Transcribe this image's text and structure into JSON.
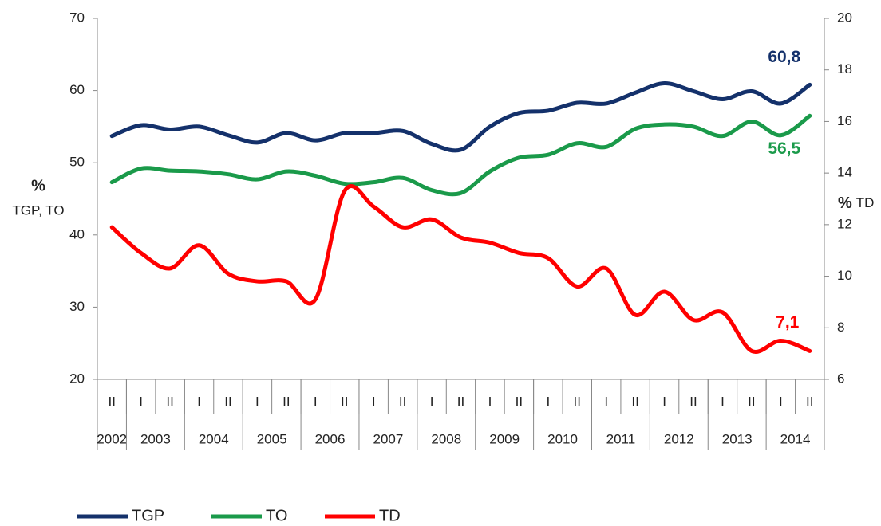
{
  "chart_data": {
    "type": "line",
    "categories": [
      "II",
      "I",
      "II",
      "I",
      "II",
      "I",
      "II",
      "I",
      "II",
      "I",
      "II",
      "I",
      "II",
      "I",
      "II",
      "I",
      "II",
      "I",
      "II",
      "I",
      "II",
      "I",
      "II",
      "I",
      "II"
    ],
    "groups": [
      {
        "label": "2002",
        "size": 1
      },
      {
        "label": "2003",
        "size": 2
      },
      {
        "label": "2004",
        "size": 2
      },
      {
        "label": "2005",
        "size": 2
      },
      {
        "label": "2006",
        "size": 2
      },
      {
        "label": "2007",
        "size": 2
      },
      {
        "label": "2008",
        "size": 2
      },
      {
        "label": "2009",
        "size": 2
      },
      {
        "label": "2010",
        "size": 2
      },
      {
        "label": "2011",
        "size": 2
      },
      {
        "label": "2012",
        "size": 2
      },
      {
        "label": "2013",
        "size": 2
      },
      {
        "label": "2014",
        "size": 2
      }
    ],
    "y_label": {
      "symbol": "%",
      "text": "TGP, TO"
    },
    "y2_label": {
      "symbol": "%",
      "text": "TD"
    },
    "ylim": [
      20,
      70
    ],
    "yticks": [
      20,
      30,
      40,
      50,
      60,
      70
    ],
    "y2lim": [
      6,
      20
    ],
    "y2ticks": [
      6,
      8,
      10,
      12,
      14,
      16,
      18,
      20
    ],
    "legend": "bottom",
    "series": [
      {
        "name": "TGP",
        "color": "#14316b",
        "values": [
          53.7,
          55.2,
          54.6,
          55.0,
          53.8,
          52.8,
          54.1,
          53.1,
          54.1,
          54.1,
          54.4,
          52.6,
          51.8,
          55.0,
          56.9,
          57.2,
          58.3,
          58.2,
          59.7,
          61.0,
          59.9,
          58.8,
          59.9,
          58.2,
          60.8
        ],
        "value_labels": [
          null,
          null,
          null,
          null,
          null,
          null,
          null,
          null,
          null,
          null,
          null,
          null,
          null,
          null,
          null,
          null,
          null,
          null,
          null,
          null,
          null,
          null,
          null,
          null,
          "60,8"
        ]
      },
      {
        "name": "TO",
        "color": "#1a9a4a",
        "values": [
          47.3,
          49.2,
          48.9,
          48.8,
          48.4,
          47.7,
          48.8,
          48.2,
          47.1,
          47.3,
          47.9,
          46.2,
          45.8,
          48.8,
          50.7,
          51.1,
          52.7,
          52.2,
          54.7,
          55.3,
          55.0,
          53.7,
          55.7,
          53.8,
          56.5
        ],
        "value_labels": [
          null,
          null,
          null,
          null,
          null,
          null,
          null,
          null,
          null,
          null,
          null,
          null,
          null,
          null,
          null,
          null,
          null,
          null,
          null,
          null,
          null,
          null,
          null,
          null,
          "56,5"
        ]
      },
      {
        "name": "TD",
        "color": "#ff0000",
        "axis": "y2",
        "values": [
          11.9,
          10.9,
          10.3,
          11.2,
          10.1,
          9.8,
          9.8,
          9.1,
          13.3,
          12.7,
          11.9,
          12.2,
          11.5,
          11.3,
          10.9,
          10.7,
          9.6,
          10.3,
          8.5,
          9.4,
          8.3,
          8.6,
          7.1,
          7.5,
          7.1
        ],
        "value_labels": [
          null,
          null,
          null,
          null,
          null,
          null,
          null,
          null,
          null,
          null,
          null,
          null,
          null,
          null,
          null,
          null,
          null,
          null,
          null,
          null,
          null,
          null,
          null,
          null,
          "7,1"
        ]
      }
    ]
  }
}
